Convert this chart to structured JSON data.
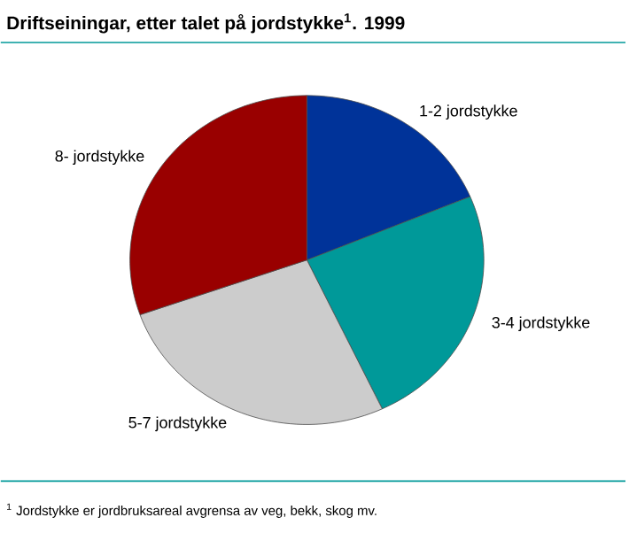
{
  "chart_data": {
    "type": "pie",
    "title": "Driftseiningar, etter talet på jordstykke$^{1}$. 1999",
    "categories": [
      "1-2 jordstykke",
      "3-4 jordstykke",
      "5-7 jordstykke",
      "8- jordstykke"
    ],
    "values": [
      18.7,
      24.3,
      26.6,
      30.4
    ],
    "colors": [
      "#003399",
      "#009999",
      "#cccccc",
      "#990000"
    ],
    "annotations": [
      "$^{1}$ Jordstykke er jordbruksareal avgrensa av veg, bekk, skog mv."
    ]
  }
}
